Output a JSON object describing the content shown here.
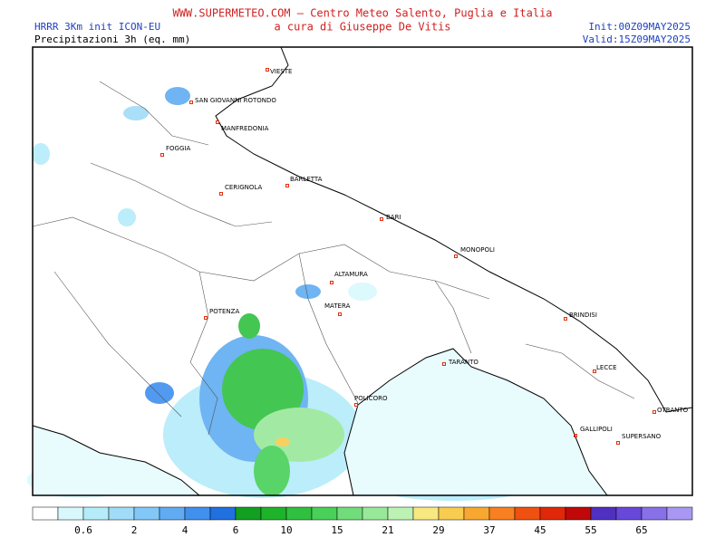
{
  "header": {
    "site": "WWW.SUPERMETEO.COM – Centro Meteo Salento, Puglia e Italia",
    "subtitle": "a cura di Giuseppe De Vitis",
    "model": "HRRR 3Km init ICON-EU",
    "variable": "Precipitazioni 3h (eq. mm)",
    "init": "Init:00Z09MAY2025",
    "valid": "Valid:15Z09MAY2025"
  },
  "cities": [
    "VIESTE",
    "SAN GIOVANNI ROTONDO",
    "MANFREDONIA",
    "FOGGIA",
    "CERIGNOLA",
    "BARLETTA",
    "BARI",
    "MONOPOLI",
    "ALTAMURA",
    "MATERA",
    "POTENZA",
    "BRINDISI",
    "TARANTO",
    "LECCE",
    "POLICORO",
    "OTRANTO",
    "GALLIPOLI",
    "SUPERSANO"
  ],
  "colorbar": {
    "labels": [
      0.6,
      2,
      4,
      6,
      10,
      15,
      21,
      29,
      37,
      45,
      55,
      65
    ],
    "colors": [
      "#ffffff",
      "#d8f8fc",
      "#b4ecfa",
      "#a0dcf8",
      "#82c8f6",
      "#60acf2",
      "#4090ee",
      "#2070e0",
      "#12a020",
      "#1eb42a",
      "#30c040",
      "#48d058",
      "#70dc7a",
      "#98e89a",
      "#bcf2b4",
      "#f8e880",
      "#f8cc50",
      "#f8a830",
      "#f88020",
      "#f05010",
      "#e02808",
      "#c00808",
      "#5030c0",
      "#6848d8",
      "#8870e8",
      "#a898f4"
    ]
  }
}
